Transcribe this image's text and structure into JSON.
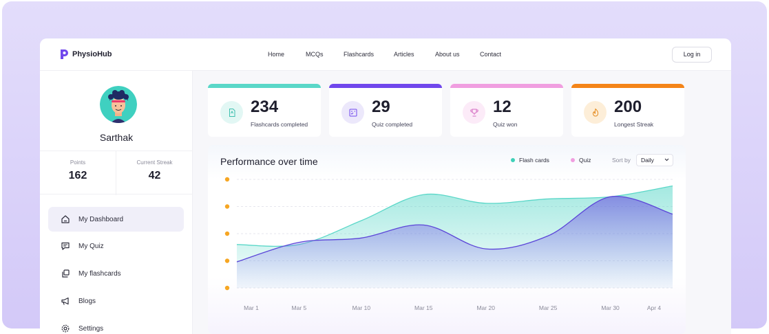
{
  "header": {
    "logo_text": "PhysioHub",
    "nav": [
      "Home",
      "MCQs",
      "Flashcards",
      "Articles",
      "About us",
      "Contact"
    ],
    "login_label": "Log in"
  },
  "user": {
    "name": "Sarthak",
    "points_label": "Points",
    "points_value": "162",
    "streak_label": "Current Streak",
    "streak_value": "42"
  },
  "sidebar": {
    "items": [
      {
        "label": "My Dashboard",
        "icon": "home-icon"
      },
      {
        "label": "My Quiz",
        "icon": "quiz-icon"
      },
      {
        "label": "My flashcards",
        "icon": "flashcards-icon"
      },
      {
        "label": "Blogs",
        "icon": "megaphone-icon"
      },
      {
        "label": "Settings",
        "icon": "gear-icon"
      }
    ]
  },
  "cards": [
    {
      "value": "234",
      "label": "Flashcards completed",
      "color": "#5ad7c8",
      "icon": "flashcard-doc-icon"
    },
    {
      "value": "29",
      "label": "Quiz completed",
      "color": "#7047ec",
      "icon": "quiz-board-icon"
    },
    {
      "value": "12",
      "label": "Quiz won",
      "color": "#f09ee0",
      "icon": "trophy-icon"
    },
    {
      "value": "200",
      "label": "Longest Streak",
      "color": "#f48418",
      "icon": "fire-icon"
    }
  ],
  "chart_panel": {
    "title": "Performance over time",
    "legend": [
      "Flash cards",
      "Quiz"
    ],
    "sort_label": "Sort by",
    "sort_value": "Daily"
  },
  "chart_data": {
    "type": "area",
    "x": [
      "Mar 1",
      "Mar 5",
      "Mar 10",
      "Mar 15",
      "Mar 20",
      "Mar 25",
      "Mar 30",
      "Apr 4"
    ],
    "series": [
      {
        "name": "Flash cards",
        "color": "#5ad7c8",
        "values": [
          2.0,
          2.0,
          3.1,
          4.3,
          3.9,
          4.1,
          4.2,
          4.7
        ]
      },
      {
        "name": "Quiz",
        "color": "#6a4fe0",
        "values": [
          1.2,
          2.1,
          2.3,
          2.9,
          1.8,
          2.4,
          4.2,
          3.4
        ]
      }
    ],
    "y_tick_markers": 5,
    "ylim": [
      0,
      5
    ],
    "grid": true
  }
}
